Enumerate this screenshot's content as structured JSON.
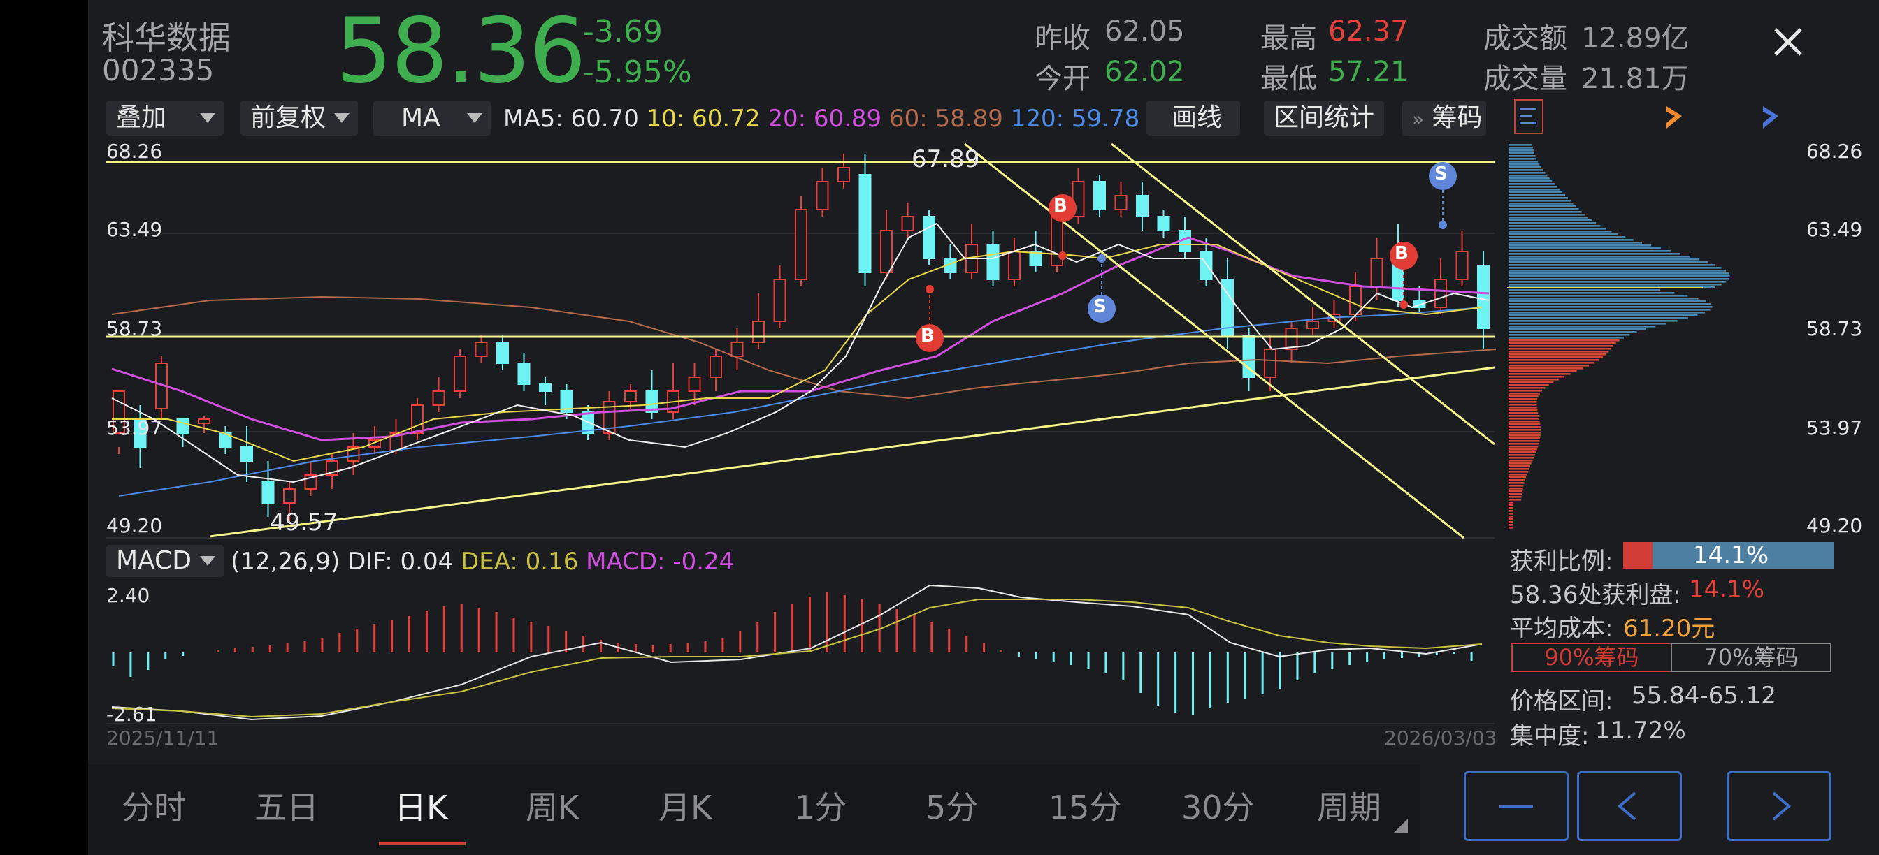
{
  "stock": {
    "name": "科华数据",
    "code": "002335",
    "price": "58.36",
    "change": "-3.69",
    "change_pct": "-5.95%",
    "prev_close_label": "昨收",
    "prev_close": "62.05",
    "open_label": "今开",
    "open": "62.02",
    "high_label": "最高",
    "high": "62.37",
    "low_label": "最低",
    "low": "57.21",
    "amount_label": "成交额",
    "amount": "12.89亿",
    "volume_label": "成交量",
    "volume": "21.81万"
  },
  "toolbar": {
    "overlay": "叠加",
    "adjust": "前复权",
    "indicator": "MA",
    "ma5": "MA5: 60.70",
    "ma10": "10: 60.72",
    "ma20": "20: 60.89",
    "ma60": "60: 58.89",
    "ma120": "120: 59.78",
    "draw": "画线",
    "range_stats": "区间统计",
    "chips": "筹码"
  },
  "main_chart": {
    "price_levels": [
      "68.26",
      "63.49",
      "58.73",
      "53.97",
      "49.20"
    ],
    "high_marker": "67.89",
    "low_marker": "49.57",
    "signal_buy": "B",
    "signal_sell": "S"
  },
  "macd": {
    "name": "MACD",
    "params": "(12,26,9)",
    "dif": "DIF: 0.04",
    "dea": "DEA: 0.16",
    "macd_val": "MACD: -0.24",
    "top": "2.40",
    "bottom": "-2.61"
  },
  "dates": {
    "start": "2025/11/11",
    "end": "2026/03/03"
  },
  "chips": {
    "profit_ratio_label": "获利比例:",
    "profit_ratio": "14.1%",
    "profit_at_label": "58.36处获利盘:",
    "profit_at": "14.1%",
    "avg_cost_label": "平均成本:",
    "avg_cost": "61.20元",
    "tab_90": "90%筹码",
    "tab_70": "70%筹码",
    "range_label": "价格区间:",
    "range": "55.84-65.12",
    "concentration_label": "集中度:",
    "concentration": "11.72%"
  },
  "tabs": [
    "分时",
    "五日",
    "日K",
    "周K",
    "月K",
    "1分",
    "5分",
    "15分",
    "30分",
    "周期"
  ],
  "colors": {
    "up": "#e5413a",
    "down": "#6ff2f4",
    "accent_blue": "#3d6fc9",
    "yellow": "#f5f58a"
  }
}
